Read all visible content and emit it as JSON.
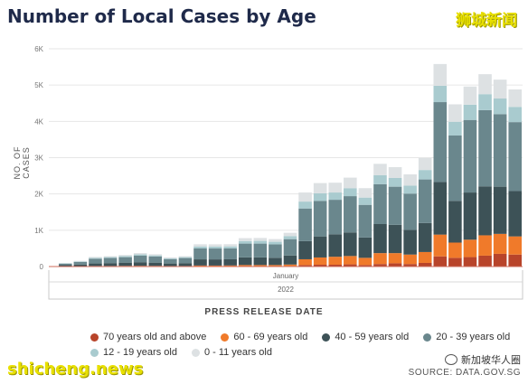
{
  "title": "Number of Local Cases by Age",
  "watermark_top": "狮城新闻",
  "watermark_bottom": "shicheng.news",
  "wechat_label": "新加坡华人圈",
  "source": "SOURCE: DATA.GOV.SG",
  "chart_data": {
    "type": "bar",
    "stacked": true,
    "title": "Number of Local Cases by Age",
    "ylabel": "NO. OF CASES",
    "xlabel": "PRESS RELEASE DATE",
    "x_group_labels": [
      "January",
      "2022"
    ],
    "yticks": [
      "0",
      "1K",
      "2K",
      "3K",
      "4K",
      "5K",
      "6K"
    ],
    "ylim": [
      0,
      6000
    ],
    "grid": true,
    "legend_position": "bottom",
    "series": [
      {
        "name": "70 years old and above",
        "color": "#b8442a",
        "values": [
          2,
          3,
          5,
          5,
          6,
          6,
          6,
          4,
          4,
          8,
          7,
          8,
          12,
          12,
          12,
          15,
          40,
          50,
          50,
          60,
          40,
          70,
          90,
          70,
          100,
          280,
          240,
          260,
          300,
          350,
          330
        ]
      },
      {
        "name": "60 - 69 years old",
        "color": "#f07a2a",
        "values": [
          5,
          8,
          10,
          10,
          12,
          14,
          12,
          10,
          10,
          20,
          20,
          22,
          30,
          30,
          30,
          40,
          160,
          200,
          220,
          230,
          200,
          300,
          280,
          260,
          300,
          600,
          420,
          480,
          560,
          550,
          500
        ]
      },
      {
        "name": "40 - 59 years old",
        "color": "#3d5257",
        "values": [
          30,
          45,
          70,
          80,
          90,
          100,
          90,
          70,
          80,
          170,
          170,
          170,
          210,
          210,
          200,
          250,
          500,
          580,
          620,
          650,
          560,
          800,
          780,
          680,
          800,
          1450,
          1150,
          1300,
          1350,
          1300,
          1250
        ]
      },
      {
        "name": "20 - 39 years old",
        "color": "#6a878d",
        "values": [
          40,
          70,
          130,
          140,
          150,
          180,
          170,
          120,
          140,
          300,
          300,
          300,
          380,
          380,
          370,
          450,
          900,
          980,
          950,
          1000,
          900,
          1100,
          1050,
          1000,
          1200,
          2200,
          1800,
          2000,
          2100,
          2000,
          1900
        ]
      },
      {
        "name": "12 - 19 years old",
        "color": "#a9cbcf",
        "values": [
          10,
          15,
          25,
          25,
          30,
          35,
          30,
          22,
          25,
          55,
          55,
          55,
          70,
          75,
          70,
          85,
          190,
          210,
          200,
          220,
          200,
          250,
          240,
          220,
          260,
          450,
          380,
          420,
          440,
          430,
          420
        ]
      },
      {
        "name": "0 - 11 years old",
        "color": "#dde1e3",
        "values": [
          10,
          15,
          25,
          25,
          30,
          35,
          30,
          25,
          25,
          60,
          60,
          60,
          80,
          80,
          75,
          90,
          250,
          280,
          270,
          290,
          260,
          310,
          300,
          310,
          330,
          600,
          480,
          500,
          550,
          520,
          480
        ]
      }
    ]
  }
}
